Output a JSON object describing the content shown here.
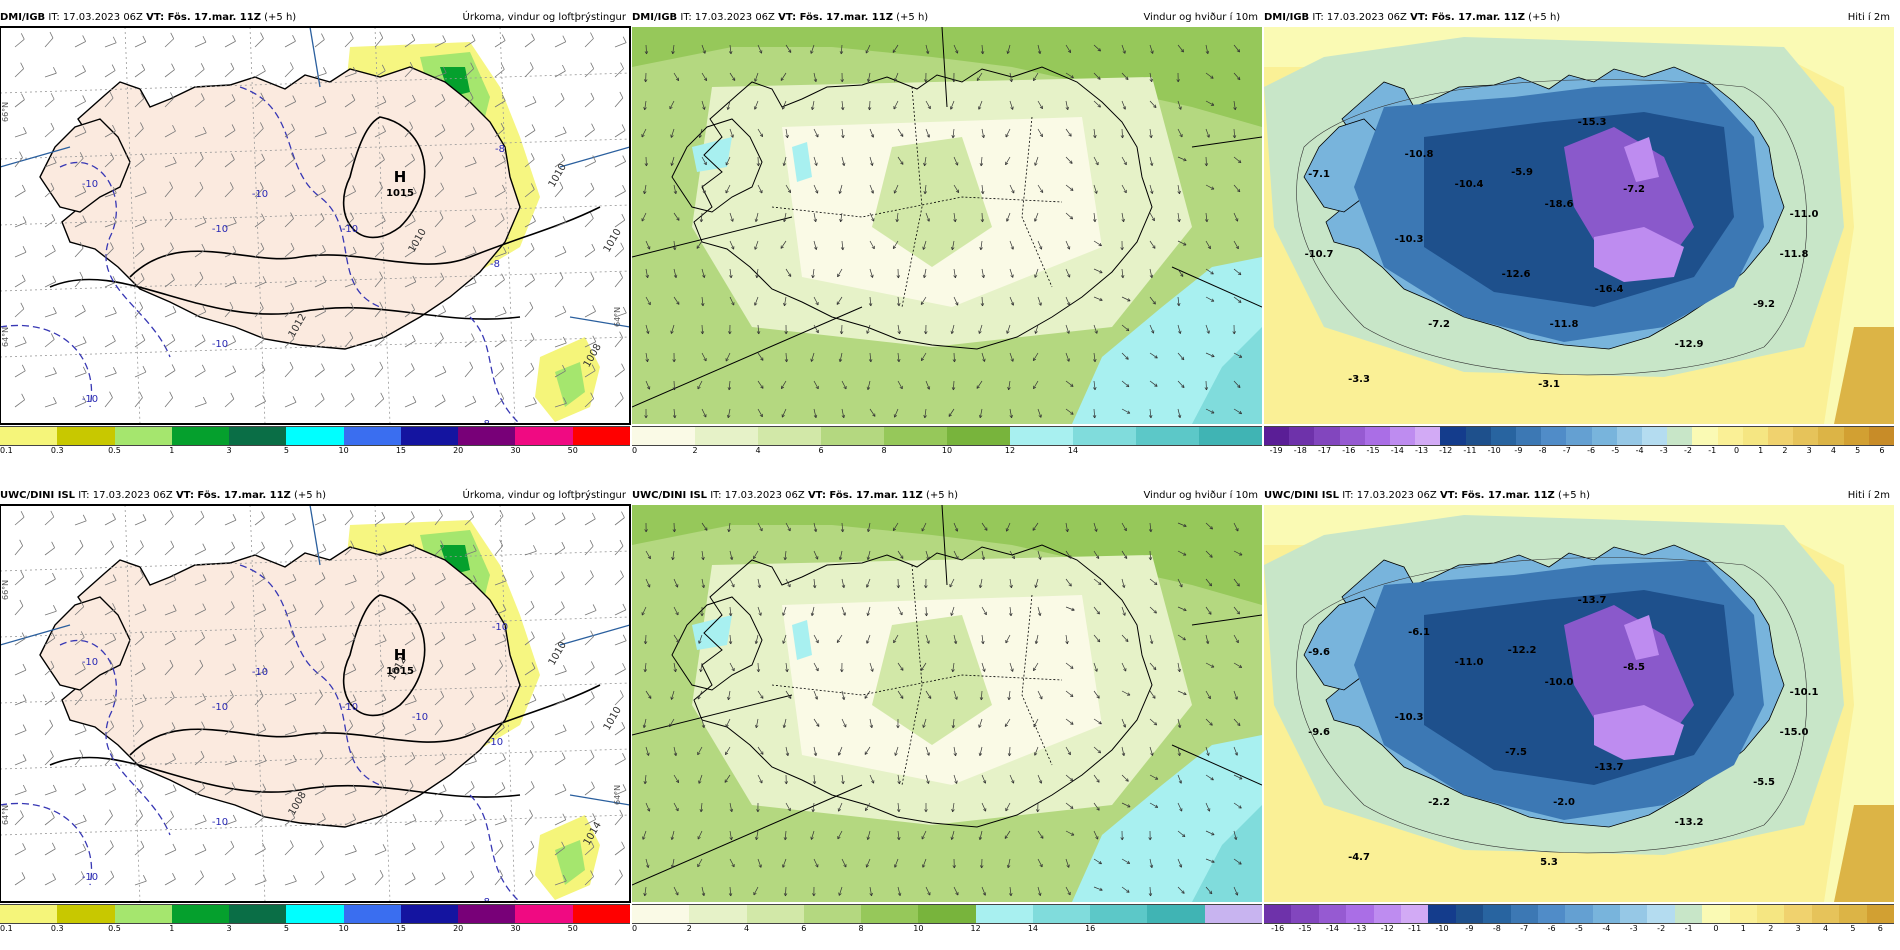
{
  "rows": [
    {
      "model": "DMI/IGB",
      "it_label": "IT:",
      "it": "17.03.2023 06Z",
      "vt_label": "VT:",
      "vt": "Fös. 17.mar. 11Z",
      "lead": "(+5 h)",
      "panels": [
        {
          "title": "Úrkoma, vindur og loftþrýstingur",
          "type": "precip",
          "colors": [
            "#f5f57a",
            "#c8c800",
            "#a5e66e",
            "#05a02d",
            "#0a6e46",
            "#00ffff",
            "#3a6ef0",
            "#1414a0",
            "#780078",
            "#f00a82",
            "#ff0000"
          ],
          "ticks": [
            "0.1",
            "0.3",
            "0.5",
            "1",
            "3",
            "5",
            "10",
            "15",
            "20",
            "30",
            "50"
          ],
          "labels": [
            {
              "t": "H",
              "v": "1015"
            },
            {
              "t": "-10"
            },
            {
              "t": "-10"
            },
            {
              "t": "-10"
            },
            {
              "t": "-10"
            },
            {
              "t": "-10"
            },
            {
              "t": "-8"
            },
            {
              "t": "-8"
            },
            {
              "t": "-8"
            },
            {
              "t": "-10"
            },
            {
              "t": "1010"
            },
            {
              "t": "1008"
            },
            {
              "t": "1010"
            },
            {
              "t": "1012"
            },
            {
              "t": "1010"
            }
          ],
          "grid_labels": [
            "66°N",
            "64°N",
            "64°N"
          ]
        },
        {
          "title": "Vindur og hviður í 10m",
          "type": "wind",
          "colors": [
            "#fafae6",
            "#e6f2c8",
            "#d2e8a8",
            "#b4d880",
            "#96c85a",
            "#78b43c",
            "#a8f0f0",
            "#80dcdc",
            "#5cc8c8",
            "#40b4b4"
          ],
          "ticks": [
            "0",
            "2",
            "4",
            "6",
            "8",
            "10",
            "12",
            "14"
          ]
        },
        {
          "title": "Hiti í 2m",
          "type": "temp",
          "colors": [
            "#5a1e96",
            "#6e32aa",
            "#8246be",
            "#965ad2",
            "#aa6ee6",
            "#be8cf0",
            "#d2aaf5",
            "#143c8c",
            "#1e508c",
            "#2864a0",
            "#3c78b4",
            "#508cc8",
            "#64a0d2",
            "#78b4dc",
            "#96c8e6",
            "#b4dcf0",
            "#c8e6c8",
            "#fafab4",
            "#faf096",
            "#f5e682",
            "#f0d26e",
            "#e6c35a",
            "#dcb446",
            "#d2a032",
            "#c88c28"
          ],
          "ticks": [
            "-19",
            "-18",
            "-17",
            "-16",
            "-15",
            "-14",
            "-13",
            "-12",
            "-11",
            "-10",
            "-9",
            "-8",
            "-7",
            "-6",
            "-5",
            "-4",
            "-3",
            "-2",
            "-1",
            "0",
            "1",
            "2",
            "3",
            "4",
            "5",
            "6"
          ],
          "labels": [
            {
              "t": "-7.1"
            },
            {
              "t": "-10.8"
            },
            {
              "t": "-10.4"
            },
            {
              "t": "-5.9"
            },
            {
              "t": "-15.3"
            },
            {
              "t": "-18.6"
            },
            {
              "t": "-7.2"
            },
            {
              "t": "-11.0"
            },
            {
              "t": "-10.7"
            },
            {
              "t": "-10.3"
            },
            {
              "t": "-12.6"
            },
            {
              "t": "-16.4"
            },
            {
              "t": "-11.8"
            },
            {
              "t": "-9.2"
            },
            {
              "t": "-7.2"
            },
            {
              "t": "-11.8"
            },
            {
              "t": "-12.9"
            },
            {
              "t": "-3.3"
            },
            {
              "t": "-3.1"
            }
          ]
        }
      ]
    },
    {
      "model": "UWC/DINI ISL",
      "it_label": "IT:",
      "it": "17.03.2023 06Z",
      "vt_label": "VT:",
      "vt": "Fös. 17.mar. 11Z",
      "lead": "(+5 h)",
      "panels": [
        {
          "title": "Úrkoma, vindur og loftþrýstingur",
          "type": "precip",
          "colors": [
            "#f5f57a",
            "#c8c800",
            "#a5e66e",
            "#05a02d",
            "#0a6e46",
            "#00ffff",
            "#3a6ef0",
            "#1414a0",
            "#780078",
            "#f00a82",
            "#ff0000"
          ],
          "ticks": [
            "0.1",
            "0.3",
            "0.5",
            "1",
            "3",
            "5",
            "10",
            "15",
            "20",
            "30",
            "50"
          ],
          "labels": [
            {
              "t": "H",
              "v": "1015"
            },
            {
              "t": "-10"
            },
            {
              "t": "-10"
            },
            {
              "t": "-10"
            },
            {
              "t": "-10"
            },
            {
              "t": "-10"
            },
            {
              "t": "-10"
            },
            {
              "t": "-10"
            },
            {
              "t": "-8"
            },
            {
              "t": "-10"
            },
            {
              "t": "-10"
            },
            {
              "t": "1014"
            },
            {
              "t": "1010"
            },
            {
              "t": "1008"
            },
            {
              "t": "1010"
            },
            {
              "t": "1012"
            }
          ],
          "grid_labels": [
            "66°N",
            "64°N",
            "64°N"
          ]
        },
        {
          "title": "Vindur og hviður í 10m",
          "type": "wind",
          "colors": [
            "#fafae6",
            "#e6f2c8",
            "#d2e8a8",
            "#b4d880",
            "#96c85a",
            "#78b43c",
            "#a8f0f0",
            "#80dcdc",
            "#5cc8c8",
            "#40b4b4",
            "#c8b4f0"
          ],
          "ticks": [
            "0",
            "2",
            "4",
            "6",
            "8",
            "10",
            "12",
            "14",
            "16"
          ]
        },
        {
          "title": "Hiti í 2m",
          "type": "temp",
          "colors": [
            "#6e32aa",
            "#8246be",
            "#965ad2",
            "#aa6ee6",
            "#be8cf0",
            "#d2aaf5",
            "#143c8c",
            "#1e508c",
            "#2864a0",
            "#3c78b4",
            "#508cc8",
            "#64a0d2",
            "#78b4dc",
            "#96c8e6",
            "#b4dcf0",
            "#c8e6c8",
            "#fafab4",
            "#faf096",
            "#f5e682",
            "#f0d26e",
            "#e6c35a",
            "#dcb446",
            "#d2a032"
          ],
          "ticks": [
            "-16",
            "-15",
            "-14",
            "-13",
            "-12",
            "-11",
            "-10",
            "-9",
            "-8",
            "-7",
            "-6",
            "-5",
            "-4",
            "-3",
            "-2",
            "-1",
            "0",
            "1",
            "2",
            "3",
            "4",
            "5",
            "6"
          ],
          "labels": [
            {
              "t": "-9.6"
            },
            {
              "t": "-6.1"
            },
            {
              "t": "-11.0"
            },
            {
              "t": "-12.2"
            },
            {
              "t": "-13.7"
            },
            {
              "t": "-10.0"
            },
            {
              "t": "-8.5"
            },
            {
              "t": "-10.1"
            },
            {
              "t": "-9.6"
            },
            {
              "t": "-10.3"
            },
            {
              "t": "-7.5"
            },
            {
              "t": "-13.7"
            },
            {
              "t": "-15.0"
            },
            {
              "t": "-5.5"
            },
            {
              "t": "-2.2"
            },
            {
              "t": "-2.0"
            },
            {
              "t": "-13.2"
            },
            {
              "t": "-4.7"
            },
            {
              "t": "5.3"
            }
          ]
        }
      ]
    }
  ]
}
